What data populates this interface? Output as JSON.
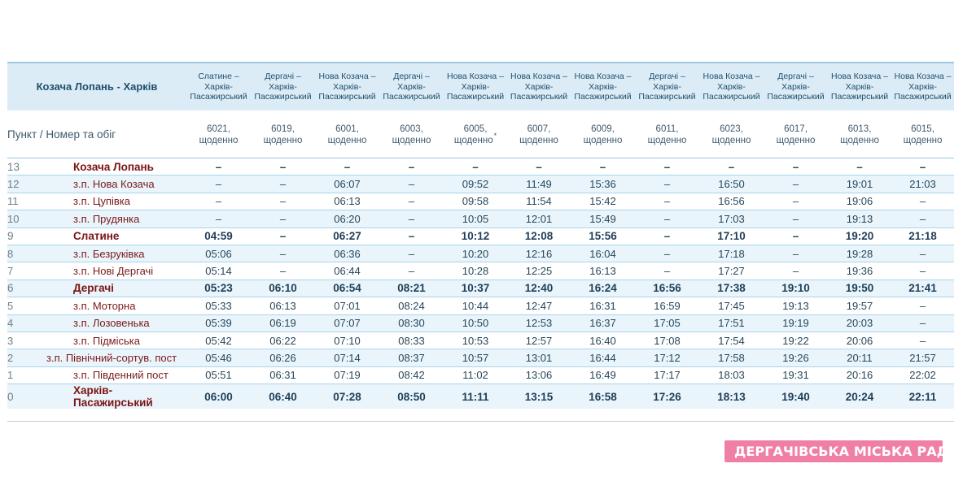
{
  "route_title": "Козача Лопань - Харків",
  "point_label": "Пункт / Номер та обіг",
  "trains": [
    {
      "route": [
        "Слатине –",
        "Харків-",
        "Пасажирський"
      ],
      "number": "6021,",
      "frequency": "щоденно",
      "note": ""
    },
    {
      "route": [
        "Дергачі –",
        "Харків-",
        "Пасажирський"
      ],
      "number": "6019,",
      "frequency": "щоденно",
      "note": ""
    },
    {
      "route": [
        "Нова Козача –",
        "Харків-",
        "Пасажирський"
      ],
      "number": "6001,",
      "frequency": "щоденно",
      "note": ""
    },
    {
      "route": [
        "Дергачі –",
        "Харків-",
        "Пасажирський"
      ],
      "number": "6003,",
      "frequency": "щоденно",
      "note": ""
    },
    {
      "route": [
        "Нова Козача –",
        "Харків-",
        "Пасажирський"
      ],
      "number": "6005,",
      "frequency": "щоденно",
      "note": "*"
    },
    {
      "route": [
        "Нова Козача –",
        "Харків-",
        "Пасажирський"
      ],
      "number": "6007,",
      "frequency": "щоденно",
      "note": ""
    },
    {
      "route": [
        "Нова Козача –",
        "Харків-",
        "Пасажирський"
      ],
      "number": "6009,",
      "frequency": "щоденно",
      "note": ""
    },
    {
      "route": [
        "Дергачі –",
        "Харків-",
        "Пасажирський"
      ],
      "number": "6011,",
      "frequency": "щоденно",
      "note": ""
    },
    {
      "route": [
        "Нова Козача –",
        "Харків-",
        "Пасажирський"
      ],
      "number": "6023,",
      "frequency": "щоденно",
      "note": ""
    },
    {
      "route": [
        "Дергачі –",
        "Харків-",
        "Пасажирський"
      ],
      "number": "6017,",
      "frequency": "щоденно",
      "note": ""
    },
    {
      "route": [
        "Нова Козача –",
        "Харків-",
        "Пасажирський"
      ],
      "number": "6013,",
      "frequency": "щоденно",
      "note": ""
    },
    {
      "route": [
        "Нова Козача –",
        "Харків-",
        "Пасажирський"
      ],
      "number": "6015,",
      "frequency": "щоденно",
      "note": ""
    }
  ],
  "stops": [
    {
      "num": "13",
      "name": "Козача Лопань",
      "major": true,
      "shade": false,
      "times": [
        "–",
        "–",
        "–",
        "–",
        "–",
        "–",
        "–",
        "–",
        "–",
        "–",
        "–",
        "–"
      ]
    },
    {
      "num": "12",
      "name": "з.п. Нова Козача",
      "major": false,
      "shade": true,
      "times": [
        "–",
        "–",
        "06:07",
        "–",
        "09:52",
        "11:49",
        "15:36",
        "–",
        "16:50",
        "–",
        "19:01",
        "21:03"
      ]
    },
    {
      "num": "11",
      "name": "з.п. Цупівка",
      "major": false,
      "shade": false,
      "times": [
        "–",
        "–",
        "06:13",
        "–",
        "09:58",
        "11:54",
        "15:42",
        "–",
        "16:56",
        "–",
        "19:06",
        "–"
      ]
    },
    {
      "num": "10",
      "name": "з.п. Прудянка",
      "major": false,
      "shade": true,
      "times": [
        "–",
        "–",
        "06:20",
        "–",
        "10:05",
        "12:01",
        "15:49",
        "–",
        "17:03",
        "–",
        "19:13",
        "–"
      ]
    },
    {
      "num": "9",
      "name": "Слатине",
      "major": true,
      "shade": false,
      "times": [
        "04:59",
        "–",
        "06:27",
        "–",
        "10:12",
        "12:08",
        "15:56",
        "–",
        "17:10",
        "–",
        "19:20",
        "21:18"
      ]
    },
    {
      "num": "8",
      "name": "з.п. Безруківка",
      "major": false,
      "shade": true,
      "times": [
        "05:06",
        "–",
        "06:36",
        "–",
        "10:20",
        "12:16",
        "16:04",
        "–",
        "17:18",
        "–",
        "19:28",
        "–"
      ]
    },
    {
      "num": "7",
      "name": "з.п. Нові Дергачі",
      "major": false,
      "shade": false,
      "times": [
        "05:14",
        "–",
        "06:44",
        "–",
        "10:28",
        "12:25",
        "16:13",
        "–",
        "17:27",
        "–",
        "19:36",
        "–"
      ]
    },
    {
      "num": "6",
      "name": "Дергачі",
      "major": true,
      "shade": true,
      "times": [
        "05:23",
        "06:10",
        "06:54",
        "08:21",
        "10:37",
        "12:40",
        "16:24",
        "16:56",
        "17:38",
        "19:10",
        "19:50",
        "21:41"
      ]
    },
    {
      "num": "5",
      "name": "з.п. Моторна",
      "major": false,
      "shade": false,
      "times": [
        "05:33",
        "06:13",
        "07:01",
        "08:24",
        "10:44",
        "12:47",
        "16:31",
        "16:59",
        "17:45",
        "19:13",
        "19:57",
        "–"
      ]
    },
    {
      "num": "4",
      "name": "з.п. Лозовенька",
      "major": false,
      "shade": true,
      "times": [
        "05:39",
        "06:19",
        "07:07",
        "08:30",
        "10:50",
        "12:53",
        "16:37",
        "17:05",
        "17:51",
        "19:19",
        "20:03",
        "–"
      ]
    },
    {
      "num": "3",
      "name": "з.п. Підміська",
      "major": false,
      "shade": false,
      "times": [
        "05:42",
        "06:22",
        "07:10",
        "08:33",
        "10:53",
        "12:57",
        "16:40",
        "17:08",
        "17:54",
        "19:22",
        "20:06",
        "–"
      ]
    },
    {
      "num": "2",
      "name": "з.п. Північний-сортув. пост",
      "major": false,
      "shade": true,
      "times": [
        "05:46",
        "06:26",
        "07:14",
        "08:37",
        "10:57",
        "13:01",
        "16:44",
        "17:12",
        "17:58",
        "19:26",
        "20:11",
        "21:57"
      ]
    },
    {
      "num": "1",
      "name": "з.п. Південний пост",
      "major": false,
      "shade": false,
      "times": [
        "05:51",
        "06:31",
        "07:19",
        "08:42",
        "11:02",
        "13:06",
        "16:49",
        "17:17",
        "18:03",
        "19:31",
        "20:16",
        "22:02"
      ]
    },
    {
      "num": "0",
      "name": "Харків-Пасажирський",
      "major": true,
      "shade": true,
      "times": [
        "06:00",
        "06:40",
        "07:28",
        "08:50",
        "11:11",
        "13:15",
        "16:58",
        "17:26",
        "18:13",
        "19:40",
        "20:24",
        "22:11"
      ]
    }
  ],
  "logo": {
    "text": "ДЕРГАЧІВСЬКА МІСЬКА РАДА",
    "icon": "coat-of-arms-icon"
  },
  "colors": {
    "header_bg": "#dcecf7",
    "row_shade": "#e9f4fb",
    "border": "#a9d4ec",
    "station_text": "#7a1a1a",
    "logo_bg": "#f07fa6"
  }
}
